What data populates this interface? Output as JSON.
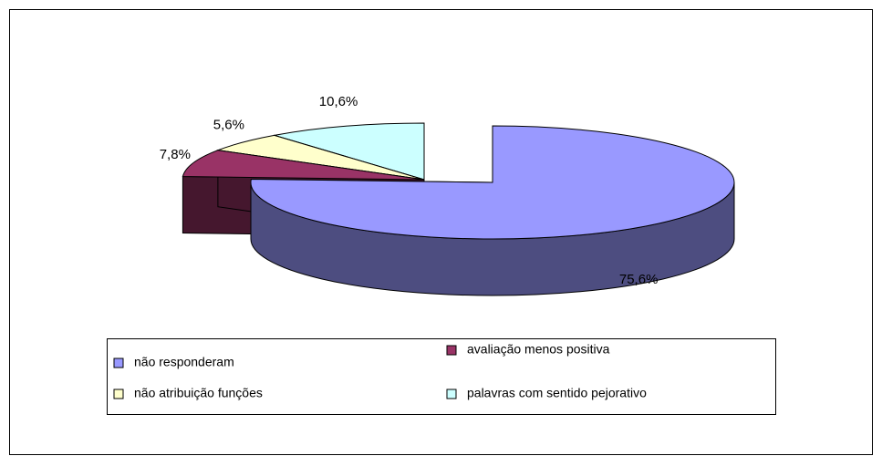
{
  "chart_data": {
    "type": "pie3d",
    "categories": [
      "não responderam",
      "avaliação menos positiva",
      "não atribuição funções",
      "palavras com sentido pejorativo"
    ],
    "values": [
      75.6,
      7.8,
      5.6,
      10.6
    ],
    "value_labels": [
      "75,6%",
      "7,8%",
      "5,6%",
      "10,6%"
    ],
    "colors": [
      "#9999ff",
      "#993366",
      "#ffffcc",
      "#ccffff"
    ],
    "legend": "bottom"
  }
}
